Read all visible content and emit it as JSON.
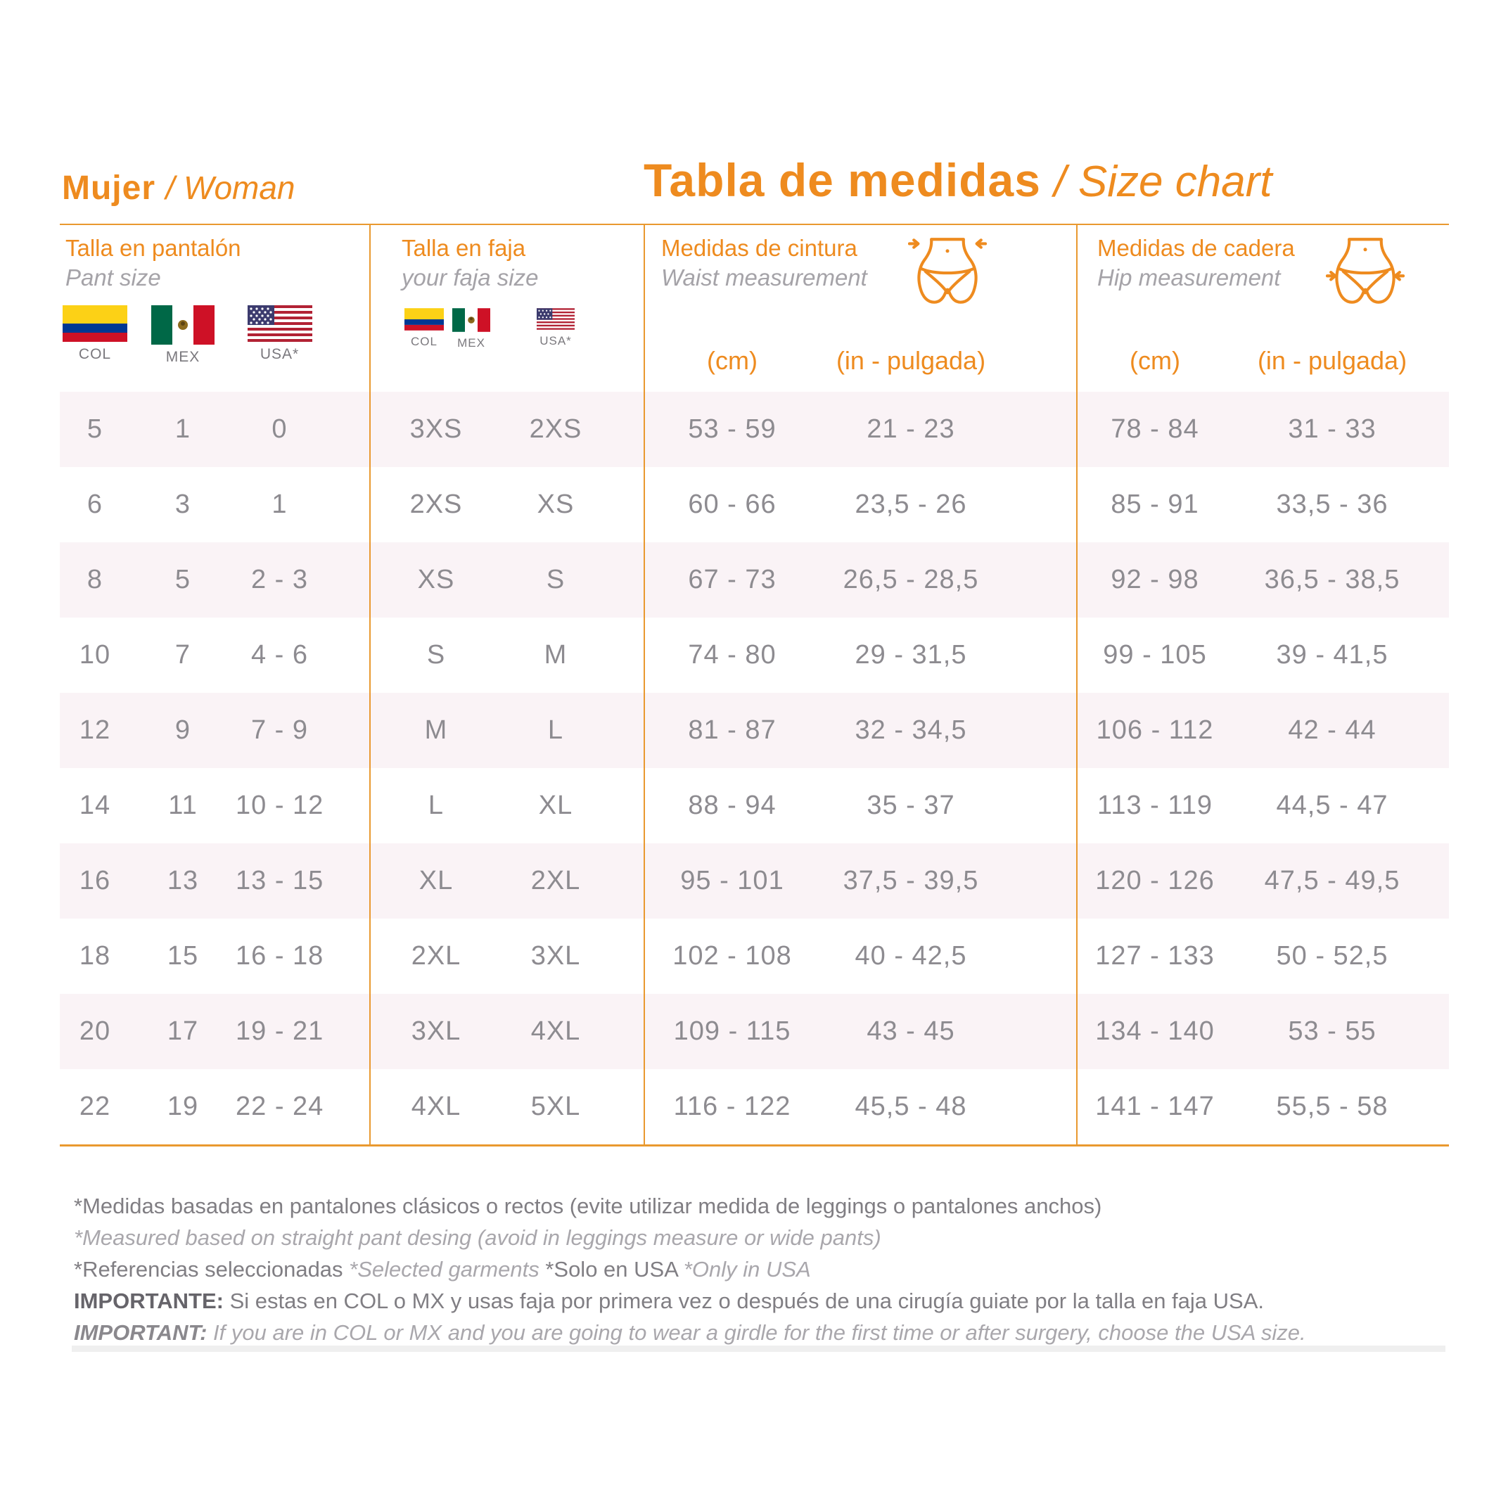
{
  "header": {
    "left_bold": "Mujer",
    "left_italic": "/ Woman",
    "right_bold": "Tabla de medidas",
    "right_italic": "/ Size chart"
  },
  "colors": {
    "accent_orange": "#EE8B1F",
    "line_orange": "#E9992F",
    "row_stripe_pink": "#FAF3F6",
    "value_gray": "#8D8B90"
  },
  "table": {
    "sections": [
      {
        "id": "pant",
        "title_es": "Talla en pantalón",
        "title_en": "Pant size",
        "flags": [
          {
            "country": "colombia",
            "label": "COL"
          },
          {
            "country": "mexico",
            "label": "MEX"
          },
          {
            "country": "usa",
            "label": "USA*"
          }
        ]
      },
      {
        "id": "faja",
        "title_es": "Talla en faja",
        "title_en": "your faja size",
        "flags": [
          {
            "country": "colombia",
            "label": "COL"
          },
          {
            "country": "mexico",
            "label": "MEX"
          },
          {
            "country": "usa",
            "label": "USA*"
          }
        ]
      },
      {
        "id": "waist",
        "title_es": "Medidas de cintura",
        "title_en": "Waist  measurement",
        "units": [
          "(cm)",
          "(in - pulgada)"
        ],
        "icon": "waist-measure-icon"
      },
      {
        "id": "hip",
        "title_es": "Medidas de cadera",
        "title_en": "Hip  measurement",
        "units": [
          "(cm)",
          "(in - pulgada)"
        ],
        "icon": "hip-measure-icon"
      }
    ],
    "rows": [
      {
        "pant": [
          "5",
          "1",
          "0"
        ],
        "faja": [
          "3XS",
          "2XS"
        ],
        "waist": [
          "53 - 59",
          "21 - 23"
        ],
        "hip": [
          "78 - 84",
          "31 - 33"
        ]
      },
      {
        "pant": [
          "6",
          "3",
          "1"
        ],
        "faja": [
          "2XS",
          "XS"
        ],
        "waist": [
          "60 - 66",
          "23,5 - 26"
        ],
        "hip": [
          "85 - 91",
          "33,5 - 36"
        ]
      },
      {
        "pant": [
          "8",
          "5",
          "2 - 3"
        ],
        "faja": [
          "XS",
          "S"
        ],
        "waist": [
          "67 - 73",
          "26,5 - 28,5"
        ],
        "hip": [
          "92 - 98",
          "36,5 - 38,5"
        ]
      },
      {
        "pant": [
          "10",
          "7",
          "4 - 6"
        ],
        "faja": [
          "S",
          "M"
        ],
        "waist": [
          "74 - 80",
          "29 - 31,5"
        ],
        "hip": [
          "99 - 105",
          "39 - 41,5"
        ]
      },
      {
        "pant": [
          "12",
          "9",
          "7 - 9"
        ],
        "faja": [
          "M",
          "L"
        ],
        "waist": [
          "81 - 87",
          "32 - 34,5"
        ],
        "hip": [
          "106 - 112",
          "42 - 44"
        ]
      },
      {
        "pant": [
          "14",
          "11",
          "10 - 12"
        ],
        "faja": [
          "L",
          "XL"
        ],
        "waist": [
          "88 - 94",
          "35 - 37"
        ],
        "hip": [
          "113 - 119",
          "44,5 - 47"
        ]
      },
      {
        "pant": [
          "16",
          "13",
          "13 - 15"
        ],
        "faja": [
          "XL",
          "2XL"
        ],
        "waist": [
          "95 - 101",
          "37,5 - 39,5"
        ],
        "hip": [
          "120 - 126",
          "47,5 - 49,5"
        ]
      },
      {
        "pant": [
          "18",
          "15",
          "16 - 18"
        ],
        "faja": [
          "2XL",
          "3XL"
        ],
        "waist": [
          "102 - 108",
          "40 - 42,5"
        ],
        "hip": [
          "127 - 133",
          "50 - 52,5"
        ]
      },
      {
        "pant": [
          "20",
          "17",
          "19 - 21"
        ],
        "faja": [
          "3XL",
          "4XL"
        ],
        "waist": [
          "109 - 115",
          "43 - 45"
        ],
        "hip": [
          "134 - 140",
          "53 - 55"
        ]
      },
      {
        "pant": [
          "22",
          "19",
          "22 - 24"
        ],
        "faja": [
          "4XL",
          "5XL"
        ],
        "waist": [
          "116 - 122",
          "45,5 - 48"
        ],
        "hip": [
          "141 - 147",
          "55,5 - 58"
        ]
      }
    ]
  },
  "footnotes": [
    [
      {
        "text": "*Medidas basadas en pantalones clásicos o rectos (evite utilizar medida de leggings o pantalones anchos)",
        "style": "es"
      }
    ],
    [
      {
        "text": "*Measured based on straight pant desing (avoid in leggings measure or wide pants)",
        "style": "en"
      }
    ],
    [
      {
        "text": "*Referencias seleccionadas ",
        "style": "es"
      },
      {
        "text": "*Selected garments ",
        "style": "en"
      },
      {
        "text": "*Solo en USA ",
        "style": "es"
      },
      {
        "text": "*Only in USA",
        "style": "en"
      }
    ],
    [
      {
        "text": "IMPORTANTE:",
        "style": "es-bold"
      },
      {
        "text": " Si estas en COL o MX y usas faja por primera vez o después de una cirugía guiate por la talla en faja USA.",
        "style": "es"
      }
    ],
    [
      {
        "text": "IMPORTANT:",
        "style": "en-bold"
      },
      {
        "text": " If you are in COL or MX and you are going to wear a girdle for the first time or after surgery, choose the USA size.",
        "style": "en"
      }
    ]
  ]
}
